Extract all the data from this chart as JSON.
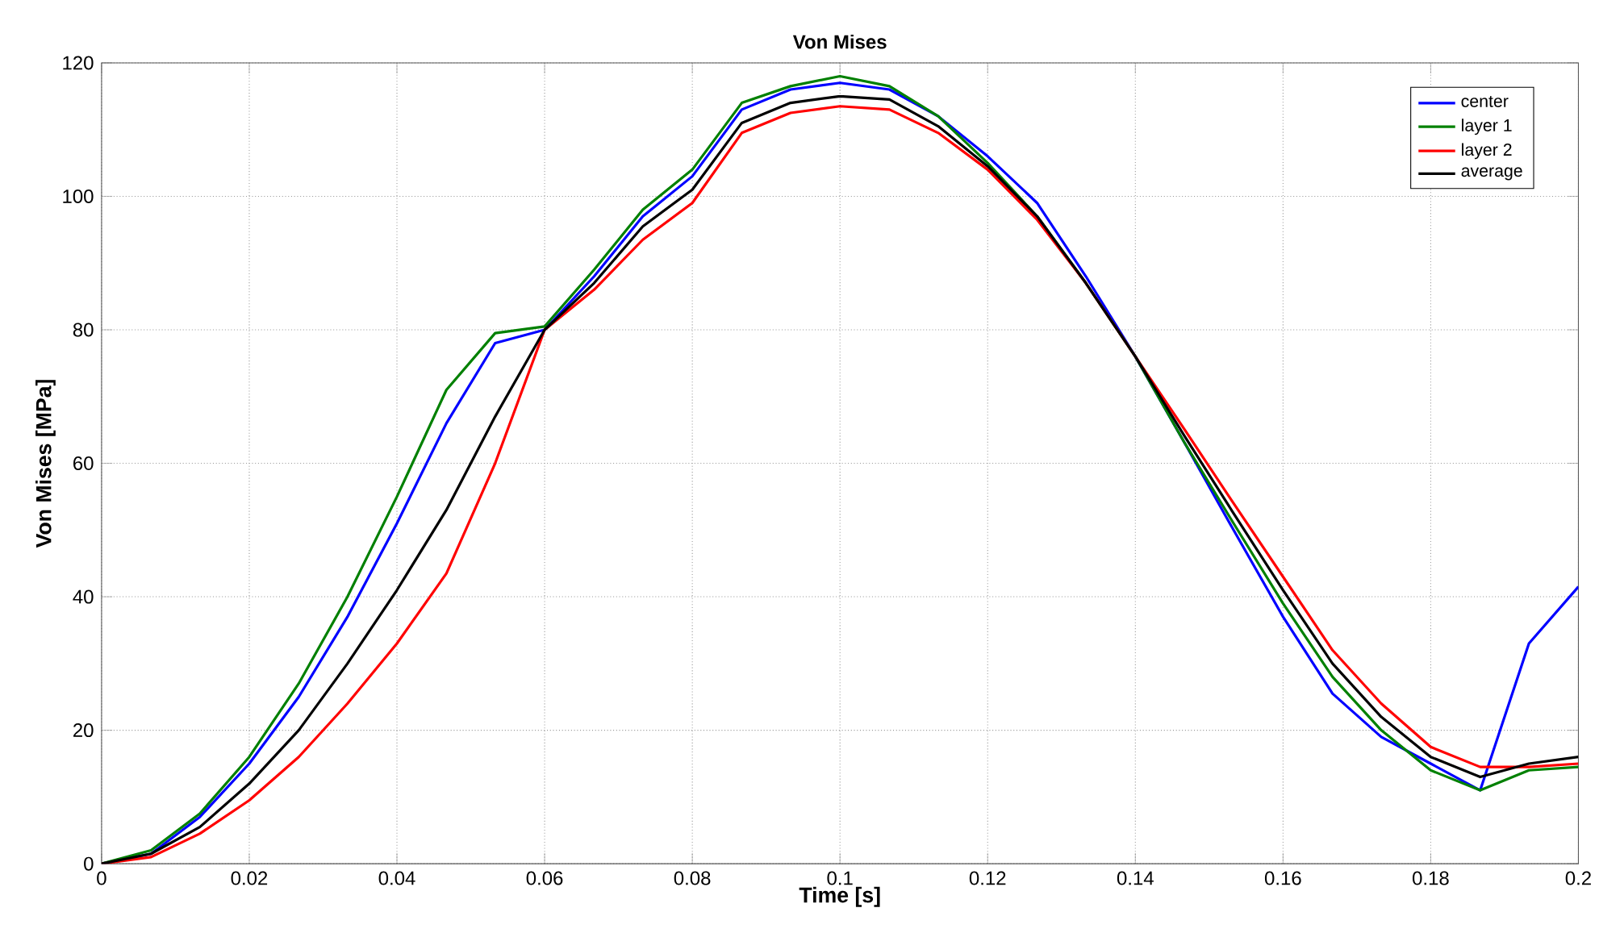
{
  "chart_data": {
    "type": "line",
    "title": "Von Mises",
    "xlabel": "Time [s]",
    "ylabel": "Von Mises [MPa]",
    "x": [
      0,
      0.0067,
      0.0133,
      0.02,
      0.0267,
      0.0333,
      0.04,
      0.0467,
      0.0533,
      0.06,
      0.0667,
      0.0733,
      0.08,
      0.0867,
      0.0933,
      0.1,
      0.1067,
      0.1133,
      0.12,
      0.1267,
      0.1333,
      0.14,
      0.1467,
      0.1533,
      0.16,
      0.1667,
      0.1733,
      0.18,
      0.1867,
      0.1933,
      0.2
    ],
    "series": [
      {
        "name": "center",
        "color": "#0000ff",
        "values": [
          0,
          1.5,
          7,
          15,
          25,
          37,
          51,
          66,
          78,
          80,
          88,
          97,
          103,
          113,
          116,
          117,
          116,
          112,
          106,
          99,
          88,
          76,
          63,
          50,
          37,
          25.5,
          19,
          15,
          11,
          33,
          41.5
        ]
      },
      {
        "name": "layer 1",
        "color": "#008000",
        "values": [
          0,
          2,
          7.5,
          16,
          27,
          40,
          55,
          71,
          79.5,
          80.5,
          89,
          98,
          104,
          114,
          116.5,
          118,
          116.5,
          112,
          105,
          97,
          87,
          76,
          63,
          51,
          39,
          28,
          20,
          14,
          11,
          14,
          14.5
        ]
      },
      {
        "name": "layer 2",
        "color": "#ff0000",
        "values": [
          0,
          1,
          4.5,
          9.5,
          16,
          24,
          33,
          43.5,
          60,
          80,
          86,
          93.5,
          99,
          109.5,
          112.5,
          113.5,
          113,
          109.5,
          104,
          96.5,
          87,
          76,
          65,
          54,
          43,
          32,
          24,
          17.5,
          14.5,
          14.5,
          15
        ]
      },
      {
        "name": "average",
        "color": "#000000",
        "values": [
          0,
          1.5,
          5.5,
          12,
          20,
          30,
          41,
          53,
          67,
          80,
          87,
          95.5,
          101,
          111,
          114,
          115,
          114.5,
          110.5,
          104.5,
          97,
          87,
          76,
          64,
          52.5,
          41,
          30,
          22,
          16,
          13,
          15,
          16
        ]
      }
    ],
    "xlim": [
      0,
      0.2
    ],
    "ylim": [
      0,
      120
    ],
    "xticks": [
      0,
      0.02,
      0.04,
      0.06,
      0.08,
      0.1,
      0.12,
      0.14,
      0.16,
      0.18,
      0.2
    ],
    "yticks": [
      0,
      20,
      40,
      60,
      80,
      100,
      120
    ],
    "grid": true,
    "legend": "top right",
    "marker": "none",
    "line_style": "solid"
  }
}
